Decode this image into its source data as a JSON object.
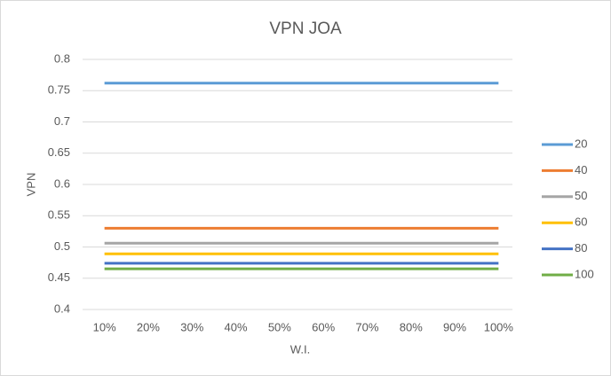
{
  "chart_data": {
    "type": "line",
    "title": "VPN JOA",
    "x_label": "W.I.",
    "y_label": "VPN",
    "categories": [
      "10%",
      "20%",
      "30%",
      "40%",
      "50%",
      "60%",
      "70%",
      "80%",
      "90%",
      "100%"
    ],
    "series": [
      {
        "name": "20",
        "color": "#5b9bd5",
        "values": [
          0.762,
          0.762,
          0.762,
          0.762,
          0.762,
          0.762,
          0.762,
          0.762,
          0.762,
          0.762
        ]
      },
      {
        "name": "40",
        "color": "#ed7d31",
        "values": [
          0.53,
          0.53,
          0.53,
          0.53,
          0.53,
          0.53,
          0.53,
          0.53,
          0.53,
          0.53
        ]
      },
      {
        "name": "50",
        "color": "#a5a5a5",
        "values": [
          0.506,
          0.506,
          0.506,
          0.506,
          0.506,
          0.506,
          0.506,
          0.506,
          0.506,
          0.506
        ]
      },
      {
        "name": "60",
        "color": "#ffc000",
        "values": [
          0.489,
          0.489,
          0.489,
          0.489,
          0.489,
          0.489,
          0.489,
          0.489,
          0.489,
          0.489
        ]
      },
      {
        "name": "80",
        "color": "#4472c4",
        "values": [
          0.474,
          0.474,
          0.474,
          0.474,
          0.474,
          0.474,
          0.474,
          0.474,
          0.474,
          0.474
        ]
      },
      {
        "name": "100",
        "color": "#70ad47",
        "values": [
          0.465,
          0.465,
          0.465,
          0.465,
          0.465,
          0.465,
          0.465,
          0.465,
          0.465,
          0.465
        ]
      }
    ],
    "ylim": [
      0.4,
      0.8
    ],
    "yticks": [
      0.4,
      0.45,
      0.5,
      0.55,
      0.6,
      0.65,
      0.7,
      0.75,
      0.8
    ],
    "grid": true,
    "legend": "right"
  }
}
